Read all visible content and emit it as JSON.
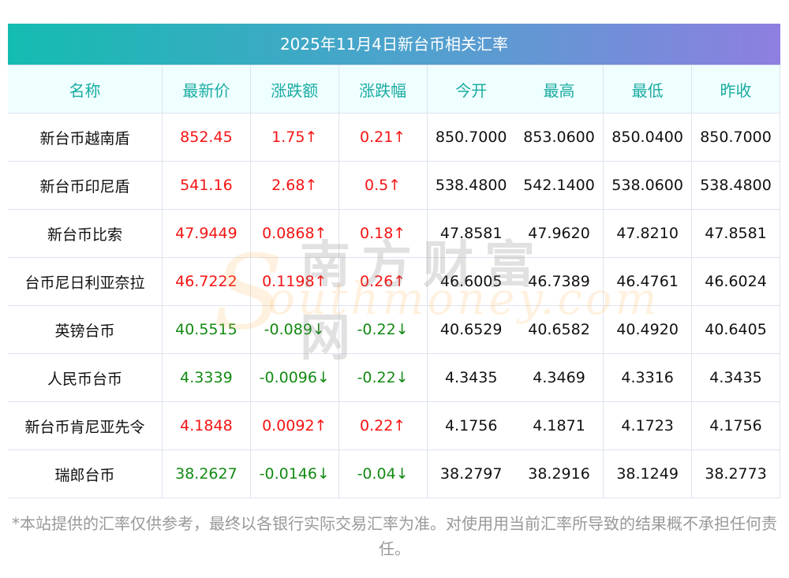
{
  "title": "2025年11月4日新台币相关汇率",
  "headers": [
    "名称",
    "最新价",
    "涨跌额",
    "涨跌幅",
    "今开",
    "最高",
    "最低",
    "昨收"
  ],
  "rows": [
    {
      "name": "新台币越南盾",
      "latest": "852.45",
      "change": "1.75↑",
      "pct": "0.21↑",
      "open": "850.7000",
      "high": "853.0600",
      "low": "850.0400",
      "prev": "850.7000",
      "dir": "up"
    },
    {
      "name": "新台币印尼盾",
      "latest": "541.16",
      "change": "2.68↑",
      "pct": "0.5↑",
      "open": "538.4800",
      "high": "542.1400",
      "low": "538.0600",
      "prev": "538.4800",
      "dir": "up"
    },
    {
      "name": "新台币比索",
      "latest": "47.9449",
      "change": "0.0868↑",
      "pct": "0.18↑",
      "open": "47.8581",
      "high": "47.9620",
      "low": "47.8210",
      "prev": "47.8581",
      "dir": "up"
    },
    {
      "name": "台币尼日利亚奈拉",
      "latest": "46.7222",
      "change": "0.1198↑",
      "pct": "0.26↑",
      "open": "46.6005",
      "high": "46.7389",
      "low": "46.4761",
      "prev": "46.6024",
      "dir": "up"
    },
    {
      "name": "英镑台币",
      "latest": "40.5515",
      "change": "-0.089↓",
      "pct": "-0.22↓",
      "open": "40.6529",
      "high": "40.6582",
      "low": "40.4920",
      "prev": "40.6405",
      "dir": "down"
    },
    {
      "name": "人民币台币",
      "latest": "4.3339",
      "change": "-0.0096↓",
      "pct": "-0.22↓",
      "open": "4.3435",
      "high": "4.3469",
      "low": "4.3316",
      "prev": "4.3435",
      "dir": "down"
    },
    {
      "name": "新台币肯尼亚先令",
      "latest": "4.1848",
      "change": "0.0092↑",
      "pct": "0.22↑",
      "open": "4.1756",
      "high": "4.1871",
      "low": "4.1723",
      "prev": "4.1756",
      "dir": "up"
    },
    {
      "name": "瑞郎台币",
      "latest": "38.2627",
      "change": "-0.0146↓",
      "pct": "-0.04↓",
      "open": "38.2797",
      "high": "38.2916",
      "low": "38.1249",
      "prev": "38.2773",
      "dir": "down"
    }
  ],
  "watermark": {
    "cn": "南方财富网",
    "en": "outhmoney.com",
    "s": "S"
  },
  "note": "*本站提供的汇率仅供参考，最终以各银行实际交易汇率为准。对使用用当前汇率所导致的结果概不承担任何责任。",
  "colors": {
    "up": "#f51414",
    "down": "#138a13",
    "header_text": "#1aaca2"
  }
}
